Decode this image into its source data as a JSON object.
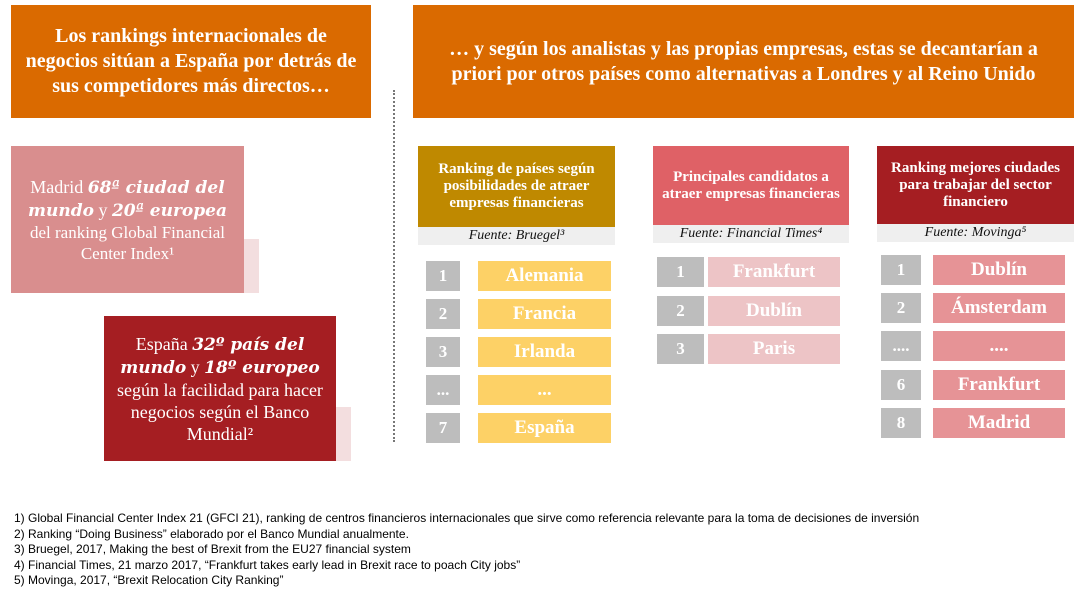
{
  "left_title": "Los rankings internacionales de negocios sitúan a España por detrás de sus competidores más directos…",
  "right_title": "… y según los analistas y las propias empresas, estas se decantarían a priori por otros países como alternativas a Londres y al Reino Unido",
  "madrid_box": {
    "t1": "Madrid ",
    "b1": "68ª ciudad del mundo",
    "t2": " y ",
    "b2": "20ª europea",
    "t3": "del  ranking Global Financial Center Index¹"
  },
  "spain_box": {
    "t1": "España ",
    "b1": "32º país del mundo",
    "t2": " y ",
    "b2": "18º europeo",
    "t3": " según la facilidad para hacer negocios según el Banco Mundial²"
  },
  "columns": [
    {
      "header": "Ranking de países según posibilidades de atraer empresas financieras",
      "source": "Fuente: Bruegel³",
      "color": "#BF8900",
      "row_color": "#FDD166",
      "rows": [
        {
          "n": "1",
          "name": "Alemania"
        },
        {
          "n": "2",
          "name": "Francia"
        },
        {
          "n": "3",
          "name": "Irlanda"
        },
        {
          "n": "...",
          "name": "..."
        },
        {
          "n": "7",
          "name": "España"
        }
      ]
    },
    {
      "header": "Principales candidatos a atraer empresas financieras",
      "source": "Fuente: Financial Times⁴",
      "color": "#DF6166",
      "row_color": "#EDC4C6",
      "rows": [
        {
          "n": "1",
          "name": "Frankfurt"
        },
        {
          "n": "2",
          "name": "Dublín"
        },
        {
          "n": "3",
          "name": "Paris"
        }
      ]
    },
    {
      "header": "Ranking mejores ciudades para trabajar del sector financiero",
      "source": "Fuente: Movinga⁵",
      "color": "#A51E22",
      "row_color": "#E69396",
      "rows": [
        {
          "n": "1",
          "name": "Dublín"
        },
        {
          "n": "2",
          "name": "Ámsterdam"
        },
        {
          "n": "....",
          "name": "...."
        },
        {
          "n": "6",
          "name": "Frankfurt"
        },
        {
          "n": "8",
          "name": "Madrid"
        }
      ]
    }
  ],
  "footnotes": [
    "1) Global Financial Center Index 21 (GFCI 21), ranking de centros financieros internacionales que sirve como referencia relevante para la toma de decisiones de inversión",
    "2) Ranking “Doing Business” elaborado por el Banco Mundial anualmente.",
    "3) Bruegel, 2017, Making the best of Brexit from the EU27 financial system",
    "4) Financial Times, 21 marzo 2017, “Frankfurt takes early lead in Brexit race to poach City jobs”",
    "5) Movinga, 2017, “Brexit Relocation City Ranking”"
  ]
}
